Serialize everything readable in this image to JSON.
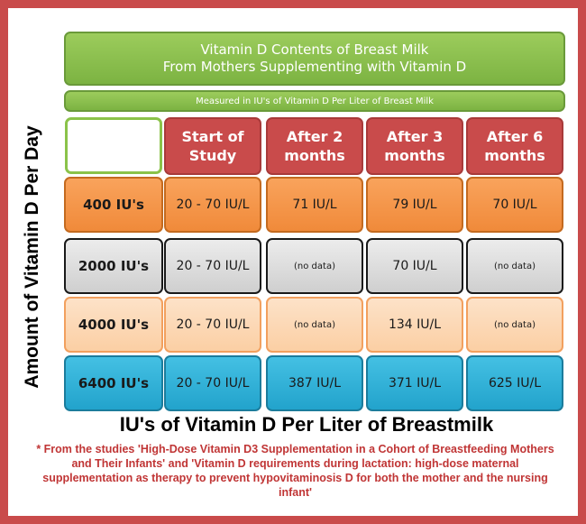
{
  "chart_data": {
    "type": "table",
    "title": "Vitamin D Contents of Breast Milk",
    "title_line2": "From Mothers Supplementing with Vitamin D",
    "subtitle": "Measured in IU's of Vitamin D Per Liter of Breast Milk",
    "ylabel": "Amount of Vitamin D Per Day",
    "xlabel": "IU's of Vitamin D Per Liter of Breastmilk",
    "columns": [
      "Start of\nStudy",
      "After 2\nmonths",
      "After 3\nmonths",
      "After 6\nmonths"
    ],
    "rows": [
      {
        "label": "400 IU's",
        "values": [
          "20 - 70 IU/L",
          "71 IU/L",
          "79 IU/L",
          "70 IU/L"
        ]
      },
      {
        "label": "2000 IU's",
        "values": [
          "20 - 70 IU/L",
          "(no data)",
          "70 IU/L",
          "(no data)"
        ]
      },
      {
        "label": "4000 IU's",
        "values": [
          "20 - 70 IU/L",
          "(no data)",
          "134 IU/L",
          "(no data)"
        ]
      },
      {
        "label": "6400 IU's",
        "values": [
          "20 - 70 IU/L",
          "387 IU/L",
          "371 IU/L",
          "625 IU/L"
        ]
      }
    ],
    "row_colors": [
      "#f08a3a",
      "#d9d9d9",
      "#fbd3ac",
      "#2aa8d2"
    ],
    "header_color": "#c94b4b",
    "title_color": "#7cb342",
    "footnote": "* From the studies 'High-Dose Vitamin D3 Supplementation in a Cohort of Breastfeeding Mothers and Their Infants' and 'Vitamin D requirements during lactation: high-dose maternal supplementation as therapy to prevent hypovitaminosis D for both the mother and the nursing infant'"
  }
}
